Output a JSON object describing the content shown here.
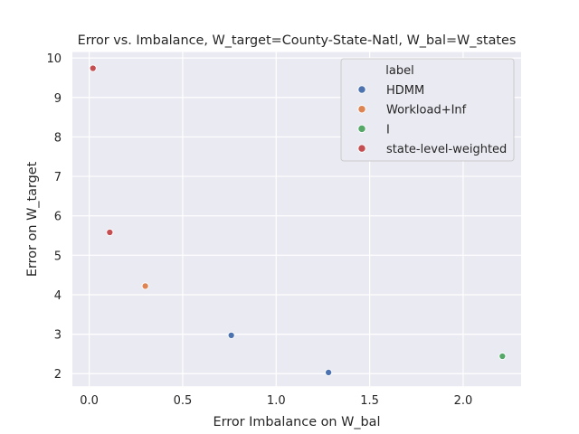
{
  "chart_data": {
    "type": "scatter",
    "title": "Error vs. Imbalance, W_target=County-State-Natl, W_bal=W_states",
    "xlabel": "Error Imbalance on W_bal",
    "ylabel": "Error on W_target",
    "xlim": [
      -0.09,
      2.31
    ],
    "ylim": [
      1.68,
      10.15
    ],
    "xticks": [
      0.0,
      0.5,
      1.0,
      1.5,
      2.0
    ],
    "xtick_labels": [
      "0.0",
      "0.5",
      "1.0",
      "1.5",
      "2.0"
    ],
    "yticks": [
      2,
      3,
      4,
      5,
      6,
      7,
      8,
      9,
      10
    ],
    "ytick_labels": [
      "2",
      "3",
      "4",
      "5",
      "6",
      "7",
      "8",
      "9",
      "10"
    ],
    "grid": true,
    "legend": {
      "title": "label",
      "placement": "upper-right"
    },
    "series": [
      {
        "name": "HDMM",
        "color": "#4c72b0",
        "points": [
          {
            "x": 0.76,
            "y": 2.97
          },
          {
            "x": 1.28,
            "y": 2.03
          }
        ]
      },
      {
        "name": "Workload+Inf",
        "color": "#dd8452",
        "points": [
          {
            "x": 0.3,
            "y": 4.22
          }
        ]
      },
      {
        "name": "I",
        "color": "#55a868",
        "points": [
          {
            "x": 2.21,
            "y": 2.44
          }
        ]
      },
      {
        "name": "state-level-weighted",
        "color": "#c44e52",
        "points": [
          {
            "x": 0.02,
            "y": 9.74
          },
          {
            "x": 0.11,
            "y": 5.58
          }
        ]
      }
    ]
  }
}
